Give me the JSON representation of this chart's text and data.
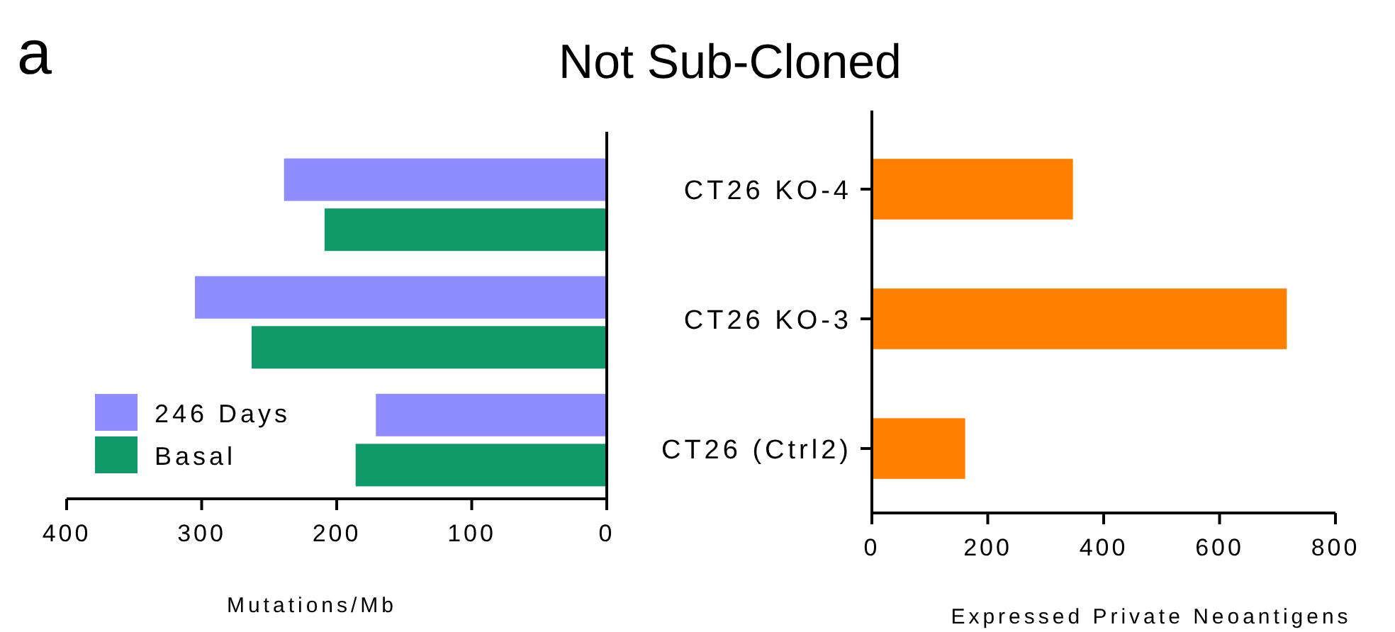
{
  "chart_data": [
    {
      "type": "bar",
      "orientation": "horizontal",
      "title": "Not Sub-Cloned",
      "annotations": [
        "a"
      ],
      "xlabel": "Mutations/Mb",
      "categories": [
        null,
        null,
        null
      ],
      "tick_labels": "x",
      "xlim": [
        400,
        0
      ],
      "xticks": [
        400,
        300,
        200,
        100,
        0
      ],
      "legend": "bottom left",
      "series": [
        {
          "name": "246 Days",
          "color": "#8f8cff",
          "values": [
            239,
            305,
            171
          ]
        },
        {
          "name": "Basal",
          "color": "#109a6a",
          "values": [
            209,
            263,
            186
          ]
        }
      ]
    },
    {
      "type": "bar",
      "orientation": "horizontal",
      "xlabel": "Expressed Private Neoantigens",
      "categories": [
        "CT26 KO-4",
        "CT26 KO-3",
        "CT26 (Ctrl2)"
      ],
      "xlim": [
        0,
        800
      ],
      "xticks": [
        0,
        200,
        400,
        600,
        800
      ],
      "series": [
        {
          "color": "#ff8000",
          "values": [
            347,
            716,
            161
          ]
        }
      ]
    }
  ]
}
